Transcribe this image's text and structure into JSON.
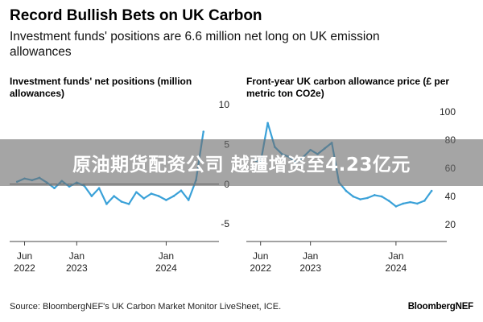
{
  "header": {
    "title": "Record Bullish Bets on UK Carbon",
    "subtitle": "Investment funds' positions are 6.6 million net long on UK emission allowances"
  },
  "chart_data": [
    {
      "type": "line",
      "title": "Investment funds' net positions (million allowances)",
      "y_ticks": [
        "10",
        "5",
        "0",
        "-5"
      ],
      "ylim": [
        -6,
        10
      ],
      "x_ticks": [
        {
          "line1": "Jun",
          "line2": "2022"
        },
        {
          "line1": "Jan",
          "line2": "2023"
        },
        {
          "line1": "Jan",
          "line2": "2024"
        }
      ],
      "x": [
        "2022-05",
        "2022-06",
        "2022-07",
        "2022-08",
        "2022-09",
        "2022-10",
        "2022-11",
        "2022-12",
        "2023-01",
        "2023-02",
        "2023-03",
        "2023-04",
        "2023-05",
        "2023-06",
        "2023-07",
        "2023-08",
        "2023-09",
        "2023-10",
        "2023-11",
        "2023-12",
        "2024-01",
        "2024-02",
        "2024-03",
        "2024-04",
        "2024-05",
        "2024-06"
      ],
      "series": [
        {
          "values": [
            0.3,
            0.7,
            0.5,
            0.8,
            0.2,
            -0.5,
            0.4,
            -0.3,
            0.2,
            -0.2,
            -1.5,
            -0.5,
            -2.5,
            -1.5,
            -2.2,
            -2.5,
            -1.0,
            -1.8,
            -1.2,
            -1.5,
            -2.0,
            -1.5,
            -0.8,
            -2.0,
            0.5,
            6.6
          ]
        }
      ],
      "zero_line": true,
      "color": "#3aa1d8"
    },
    {
      "type": "line",
      "title": "Front-year UK carbon allowance price (£ per metric ton CO2e)",
      "y_ticks": [
        "100",
        "80",
        "60",
        "40",
        "20"
      ],
      "ylim": [
        15,
        105
      ],
      "x_ticks": [
        {
          "line1": "Jun",
          "line2": "2022"
        },
        {
          "line1": "Jan",
          "line2": "2023"
        },
        {
          "line1": "Jan",
          "line2": "2024"
        }
      ],
      "x": [
        "2022-05",
        "2022-06",
        "2022-07",
        "2022-08",
        "2022-09",
        "2022-10",
        "2022-11",
        "2022-12",
        "2023-01",
        "2023-02",
        "2023-03",
        "2023-04",
        "2023-05",
        "2023-06",
        "2023-07",
        "2023-08",
        "2023-09",
        "2023-10",
        "2023-11",
        "2023-12",
        "2024-01",
        "2024-02",
        "2024-03",
        "2024-04",
        "2024-05",
        "2024-06"
      ],
      "series": [
        {
          "values": [
            66,
            64,
            92,
            75,
            70,
            68,
            64,
            68,
            73,
            70,
            74,
            78,
            50,
            44,
            40,
            38,
            39,
            41,
            40,
            37,
            33,
            35,
            36,
            35,
            37,
            44
          ]
        }
      ],
      "color": "#3aa1d8"
    }
  ],
  "footer": {
    "source": "Source: BloombergNEF's UK Carbon Market Monitor LiveSheet, ICE.",
    "brand": "BloombergNEF"
  },
  "banner": {
    "text": "原油期货配资公司 越疆增资至4.23亿元"
  }
}
